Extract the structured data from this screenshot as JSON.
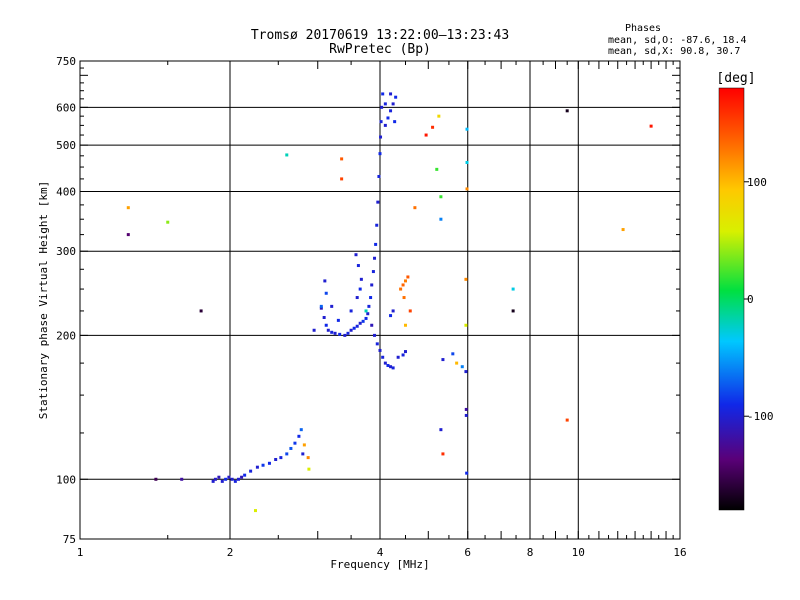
{
  "chart_data": {
    "type": "scatter",
    "title": "Tromsø 20170619 13:22:00–13:23:43",
    "subtitle": "RwPretec (Bp)",
    "xlabel": "Frequency [MHz]",
    "ylabel": "Stationary phase Virtual Height [km]",
    "x_scale": "log2",
    "y_scale": "log",
    "xlim": [
      1,
      16
    ],
    "ylim": [
      75,
      750
    ],
    "x_ticks": [
      1,
      2,
      4,
      6,
      8,
      10,
      16
    ],
    "x_tick_labels": [
      "1",
      "2",
      "4",
      "6",
      "8",
      "10",
      "16"
    ],
    "y_ticks": [
      75,
      100,
      200,
      300,
      400,
      500,
      600,
      750
    ],
    "y_tick_labels": [
      "75",
      "100",
      "200",
      "300",
      "400",
      "500",
      "600",
      "750"
    ],
    "x_gridlines": [
      2,
      4,
      6,
      8,
      10
    ],
    "y_gridlines": [
      100,
      200,
      300,
      400,
      500,
      600
    ],
    "phases": {
      "title": "Phases",
      "o_line": "mean, sd,O: -87.6, 18.4",
      "x_line": "mean, sd,X:  90.8, 30.7"
    },
    "colorbar": {
      "label": "[deg]",
      "range": [
        -180,
        180
      ],
      "tick_values": [
        -100,
        0,
        100
      ],
      "tick_labels": [
        "-100",
        "0",
        "100"
      ]
    },
    "series": [
      {
        "name": "trace-points",
        "points": [
          [
            1.42,
            100,
            -150
          ],
          [
            1.6,
            100,
            -120
          ],
          [
            1.85,
            99,
            -100
          ],
          [
            1.87,
            100,
            -105
          ],
          [
            1.9,
            101,
            -110
          ],
          [
            1.93,
            99,
            -100
          ],
          [
            1.96,
            100,
            -90
          ],
          [
            1.99,
            101,
            -105
          ],
          [
            2.02,
            100,
            -100
          ],
          [
            2.05,
            99,
            -95
          ],
          [
            2.08,
            100,
            -100
          ],
          [
            2.11,
            101,
            -110
          ],
          [
            2.14,
            102,
            -90
          ],
          [
            2.2,
            104,
            -95
          ],
          [
            2.27,
            106,
            -100
          ],
          [
            2.33,
            107,
            -85
          ],
          [
            2.4,
            108,
            -90
          ],
          [
            2.47,
            110,
            -100
          ],
          [
            2.53,
            111,
            -95
          ],
          [
            2.6,
            113,
            -80
          ],
          [
            2.65,
            116,
            -75
          ],
          [
            2.7,
            119,
            -85
          ],
          [
            2.75,
            123,
            -90
          ],
          [
            2.78,
            127,
            -70
          ],
          [
            2.8,
            113,
            -100
          ],
          [
            2.82,
            118,
            110
          ],
          [
            2.87,
            111,
            120
          ],
          [
            2.88,
            105,
            60
          ],
          [
            2.95,
            205,
            -100
          ],
          [
            3.05,
            228,
            -110
          ],
          [
            3.09,
            218,
            -100
          ],
          [
            3.12,
            210,
            -90
          ],
          [
            3.15,
            205,
            -100
          ],
          [
            3.2,
            203,
            -95
          ],
          [
            3.25,
            202,
            -100
          ],
          [
            3.32,
            201,
            -90
          ],
          [
            3.4,
            200,
            -100
          ],
          [
            3.45,
            202,
            -95
          ],
          [
            3.5,
            205,
            -100
          ],
          [
            3.55,
            207,
            -90
          ],
          [
            3.6,
            209,
            -95
          ],
          [
            3.65,
            212,
            -100
          ],
          [
            3.7,
            214,
            -85
          ],
          [
            3.75,
            217,
            -90
          ],
          [
            3.78,
            222,
            -100
          ],
          [
            3.8,
            230,
            -95
          ],
          [
            3.83,
            240,
            -90
          ],
          [
            3.85,
            255,
            -100
          ],
          [
            3.88,
            272,
            -95
          ],
          [
            3.9,
            290,
            -100
          ],
          [
            3.92,
            310,
            -90
          ],
          [
            3.94,
            340,
            -95
          ],
          [
            3.96,
            380,
            -100
          ],
          [
            3.98,
            430,
            -95
          ],
          [
            4.0,
            480,
            -90
          ],
          [
            4.01,
            520,
            -100
          ],
          [
            4.02,
            560,
            -95
          ],
          [
            4.03,
            600,
            -100
          ],
          [
            4.05,
            640,
            -90
          ],
          [
            3.12,
            245,
            -80
          ],
          [
            3.2,
            230,
            -100
          ],
          [
            3.3,
            215,
            -90
          ],
          [
            3.5,
            225,
            -95
          ],
          [
            3.6,
            240,
            -100
          ],
          [
            3.65,
            250,
            -90
          ],
          [
            3.67,
            262,
            -100
          ],
          [
            3.62,
            280,
            -95
          ],
          [
            3.58,
            295,
            -100
          ],
          [
            3.05,
            230,
            -70
          ],
          [
            3.1,
            260,
            -100
          ],
          [
            3.75,
            225,
            -20
          ],
          [
            3.85,
            210,
            -110
          ],
          [
            3.9,
            200,
            -100
          ],
          [
            3.95,
            192,
            -95
          ],
          [
            4.0,
            186,
            -100
          ],
          [
            4.05,
            180,
            -95
          ],
          [
            4.1,
            175,
            -100
          ],
          [
            4.15,
            173,
            -90
          ],
          [
            4.2,
            172,
            -100
          ],
          [
            4.25,
            171,
            -95
          ],
          [
            4.35,
            180,
            -100
          ],
          [
            4.45,
            182,
            -95
          ],
          [
            4.5,
            185,
            -100
          ],
          [
            4.2,
            220,
            -90
          ],
          [
            4.25,
            225,
            -100
          ],
          [
            4.1,
            550,
            -100
          ],
          [
            4.15,
            570,
            -90
          ],
          [
            4.2,
            590,
            -95
          ],
          [
            4.25,
            610,
            -100
          ],
          [
            4.3,
            630,
            -90
          ],
          [
            4.1,
            610,
            -95
          ],
          [
            4.2,
            640,
            -100
          ],
          [
            4.28,
            560,
            -90
          ],
          [
            4.4,
            250,
            130
          ],
          [
            4.45,
            255,
            135
          ],
          [
            4.5,
            260,
            125
          ],
          [
            4.55,
            265,
            140
          ],
          [
            4.47,
            240,
            130
          ],
          [
            4.6,
            225,
            150
          ],
          [
            4.5,
            210,
            100
          ],
          [
            4.7,
            370,
            130
          ],
          [
            4.95,
            525,
            170
          ],
          [
            5.1,
            545,
            160
          ],
          [
            5.25,
            575,
            80
          ],
          [
            5.2,
            445,
            20
          ],
          [
            5.3,
            390,
            20
          ],
          [
            5.3,
            350,
            -60
          ],
          [
            5.35,
            178,
            -100
          ],
          [
            5.6,
            183,
            -80
          ],
          [
            5.7,
            175,
            100
          ],
          [
            5.85,
            172,
            -60
          ],
          [
            5.3,
            127,
            -100
          ],
          [
            5.35,
            113,
            160
          ],
          [
            5.95,
            168,
            -100
          ],
          [
            5.95,
            210,
            60
          ],
          [
            5.95,
            262,
            120
          ],
          [
            5.98,
            460,
            -30
          ],
          [
            5.98,
            540,
            -40
          ],
          [
            5.98,
            405,
            120
          ],
          [
            5.97,
            103,
            -90
          ],
          [
            5.96,
            136,
            -100
          ],
          [
            5.96,
            140,
            -120
          ],
          [
            3.35,
            468,
            140
          ],
          [
            3.35,
            425,
            150
          ],
          [
            2.6,
            477,
            -20
          ],
          [
            1.25,
            370,
            110
          ],
          [
            1.25,
            325,
            -140
          ],
          [
            1.5,
            345,
            40
          ],
          [
            1.75,
            225,
            -160
          ],
          [
            2.25,
            86,
            60
          ],
          [
            7.4,
            250,
            -30
          ],
          [
            7.4,
            225,
            -170
          ],
          [
            9.5,
            590,
            -170
          ],
          [
            9.5,
            133,
            150
          ],
          [
            12.3,
            333,
            110
          ],
          [
            14.0,
            548,
            170
          ]
        ]
      }
    ]
  }
}
